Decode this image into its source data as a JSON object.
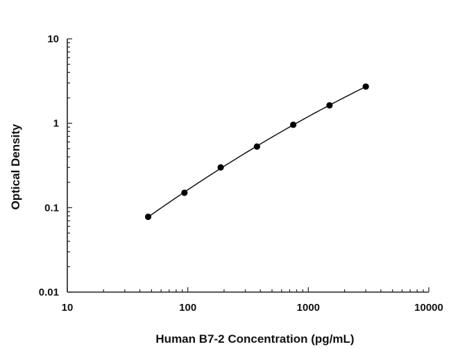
{
  "chart_data": {
    "type": "scatter",
    "title": "",
    "xlabel": "Human B7-2 Concentration (pg/mL)",
    "ylabel": "Optical Density",
    "xscale": "log",
    "yscale": "log",
    "xlim": [
      10,
      10000
    ],
    "ylim": [
      0.01,
      10
    ],
    "xticks": [
      "10",
      "100",
      "1000",
      "10000"
    ],
    "yticks": [
      "0.01",
      "0.1",
      "1",
      "10"
    ],
    "grid": false,
    "legend": "none",
    "fit_line": true,
    "series": [
      {
        "x": [
          46.9,
          93.8,
          187.5,
          375,
          750,
          1500,
          3000
        ],
        "y": [
          0.078,
          0.15,
          0.3,
          0.53,
          0.96,
          1.63,
          2.72
        ]
      }
    ]
  }
}
